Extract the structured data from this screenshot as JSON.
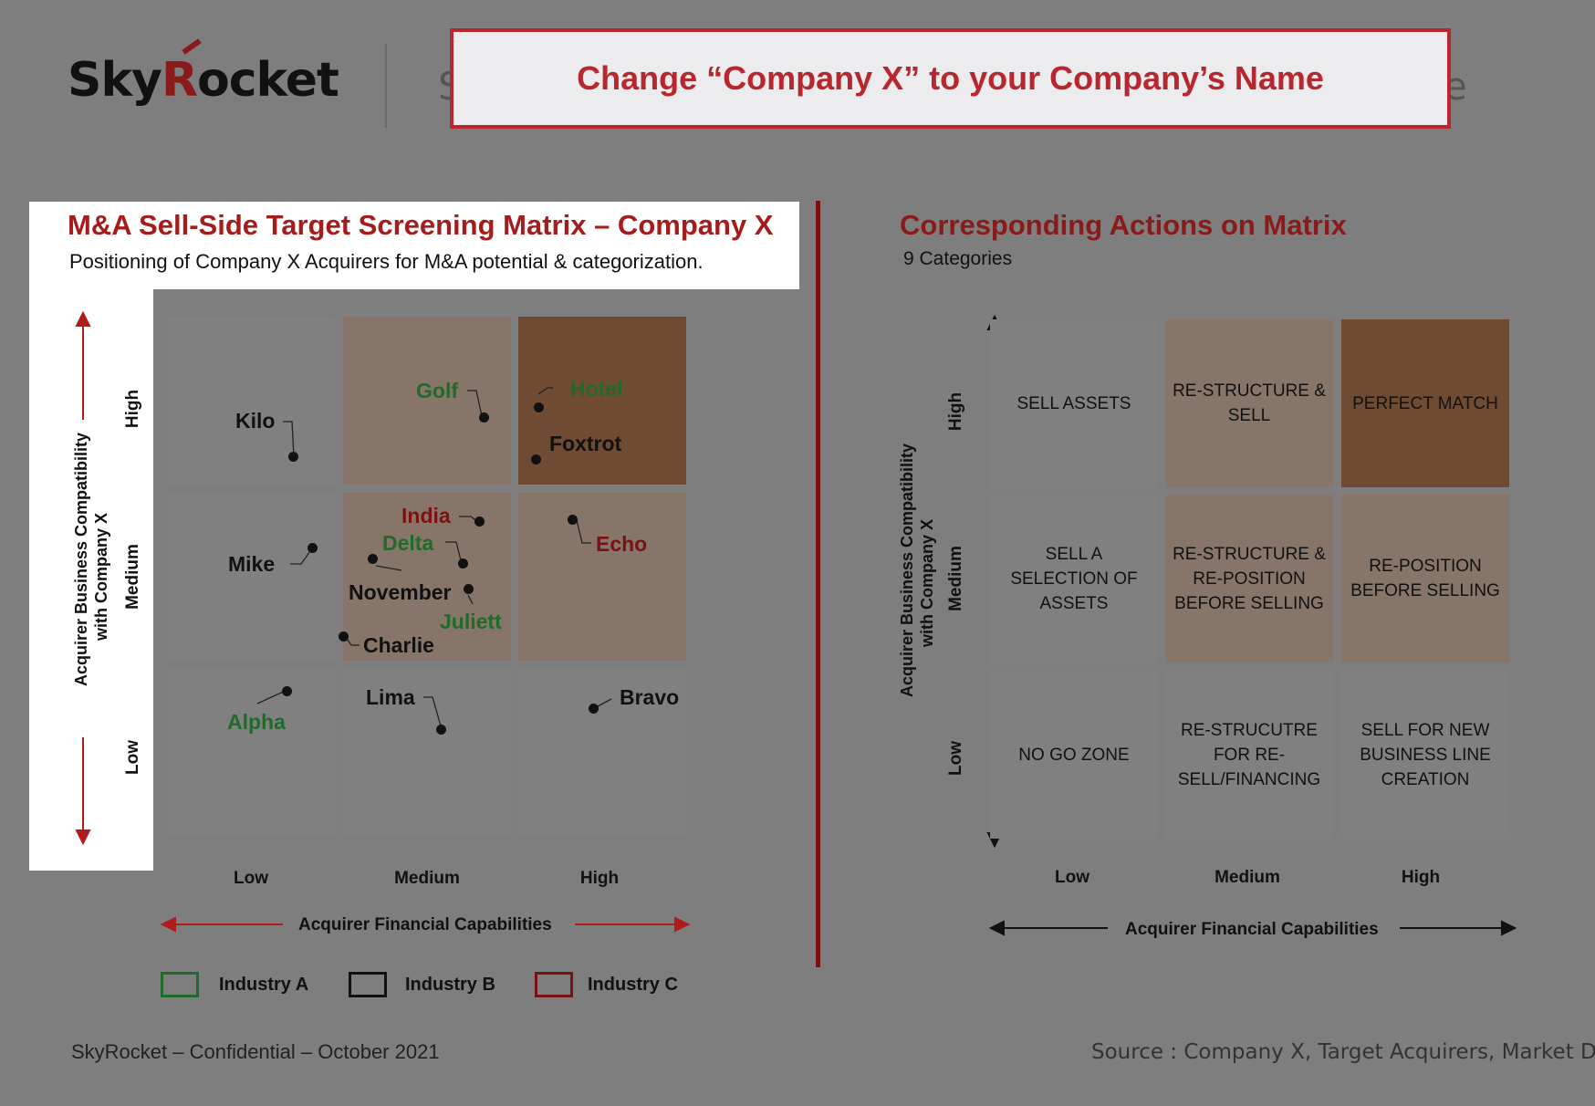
{
  "header": {
    "logo_text_a": "Sky",
    "logo_text_r": "R",
    "logo_text_b": "ocket",
    "ghost_title_start": "S",
    "ghost_title_end": "e",
    "banner_text": "Change “Company X” to your Company’s Name"
  },
  "left": {
    "title": "M&A Sell-Side Target Screening Matrix – Company X",
    "subtitle": "Positioning of Company X Acquirers for M&A potential & categorization.",
    "y_axis_title_line1": "Acquirer Business Compatibility",
    "y_axis_title_line2": "with Company X",
    "y_levels": [
      "High",
      "Medium",
      "Low"
    ],
    "x_levels": [
      "Low",
      "Medium",
      "High"
    ],
    "x_axis_title": "Acquirer Financial Capabilities",
    "legend": [
      {
        "label": "Industry A",
        "color": "#1f6b2a"
      },
      {
        "label": "Industry B",
        "color": "#111111"
      },
      {
        "label": "Industry C",
        "color": "#7a1212"
      }
    ],
    "acquirers": [
      {
        "name": "Kilo",
        "industry": "B"
      },
      {
        "name": "Golf",
        "industry": "A"
      },
      {
        "name": "Hotel",
        "industry": "A"
      },
      {
        "name": "Foxtrot",
        "industry": "B"
      },
      {
        "name": "India",
        "industry": "C"
      },
      {
        "name": "Delta",
        "industry": "A"
      },
      {
        "name": "Mike",
        "industry": "B"
      },
      {
        "name": "Echo",
        "industry": "C"
      },
      {
        "name": "November",
        "industry": "B"
      },
      {
        "name": "Juliett",
        "industry": "A"
      },
      {
        "name": "Charlie",
        "industry": "B"
      },
      {
        "name": "Lima",
        "industry": "B"
      },
      {
        "name": "Bravo",
        "industry": "B"
      },
      {
        "name": "Alpha",
        "industry": "A"
      }
    ]
  },
  "right": {
    "title": "Corresponding Actions on Matrix",
    "subtitle": "9 Categories",
    "y_axis_title_line1": "Acquirer  Business Compatibility",
    "y_axis_title_line2": "with Company X",
    "y_levels": [
      "High",
      "Medium",
      "Low"
    ],
    "x_levels": [
      "Low",
      "Medium",
      "High"
    ],
    "x_axis_title": "Acquirer Financial Capabilities",
    "cells": [
      [
        "SELL ASSETS",
        "RE-STRUCTURE & SELL",
        "PERFECT MATCH"
      ],
      [
        "SELL A SELECTION OF ASSETS",
        "RE-STRUCTURE & RE-POSITION BEFORE SELLING",
        "RE-POSITION BEFORE SELLING"
      ],
      [
        "NO GO ZONE",
        "RE-STRUCUTRE FOR RE-SELL/FINANCING",
        "SELL FOR NEW BUSINESS LINE CREATION"
      ]
    ]
  },
  "footer": {
    "confidential": "SkyRocket – Confidential – October 2021",
    "source": "Source : Company X, Target Acquirers, Market Data"
  },
  "colors": {
    "background": "#7e7e7e",
    "accent_red": "#b8262e",
    "cell_gray": "#808080",
    "cell_tan": "#87756a",
    "cell_brown": "#6f4b33"
  }
}
